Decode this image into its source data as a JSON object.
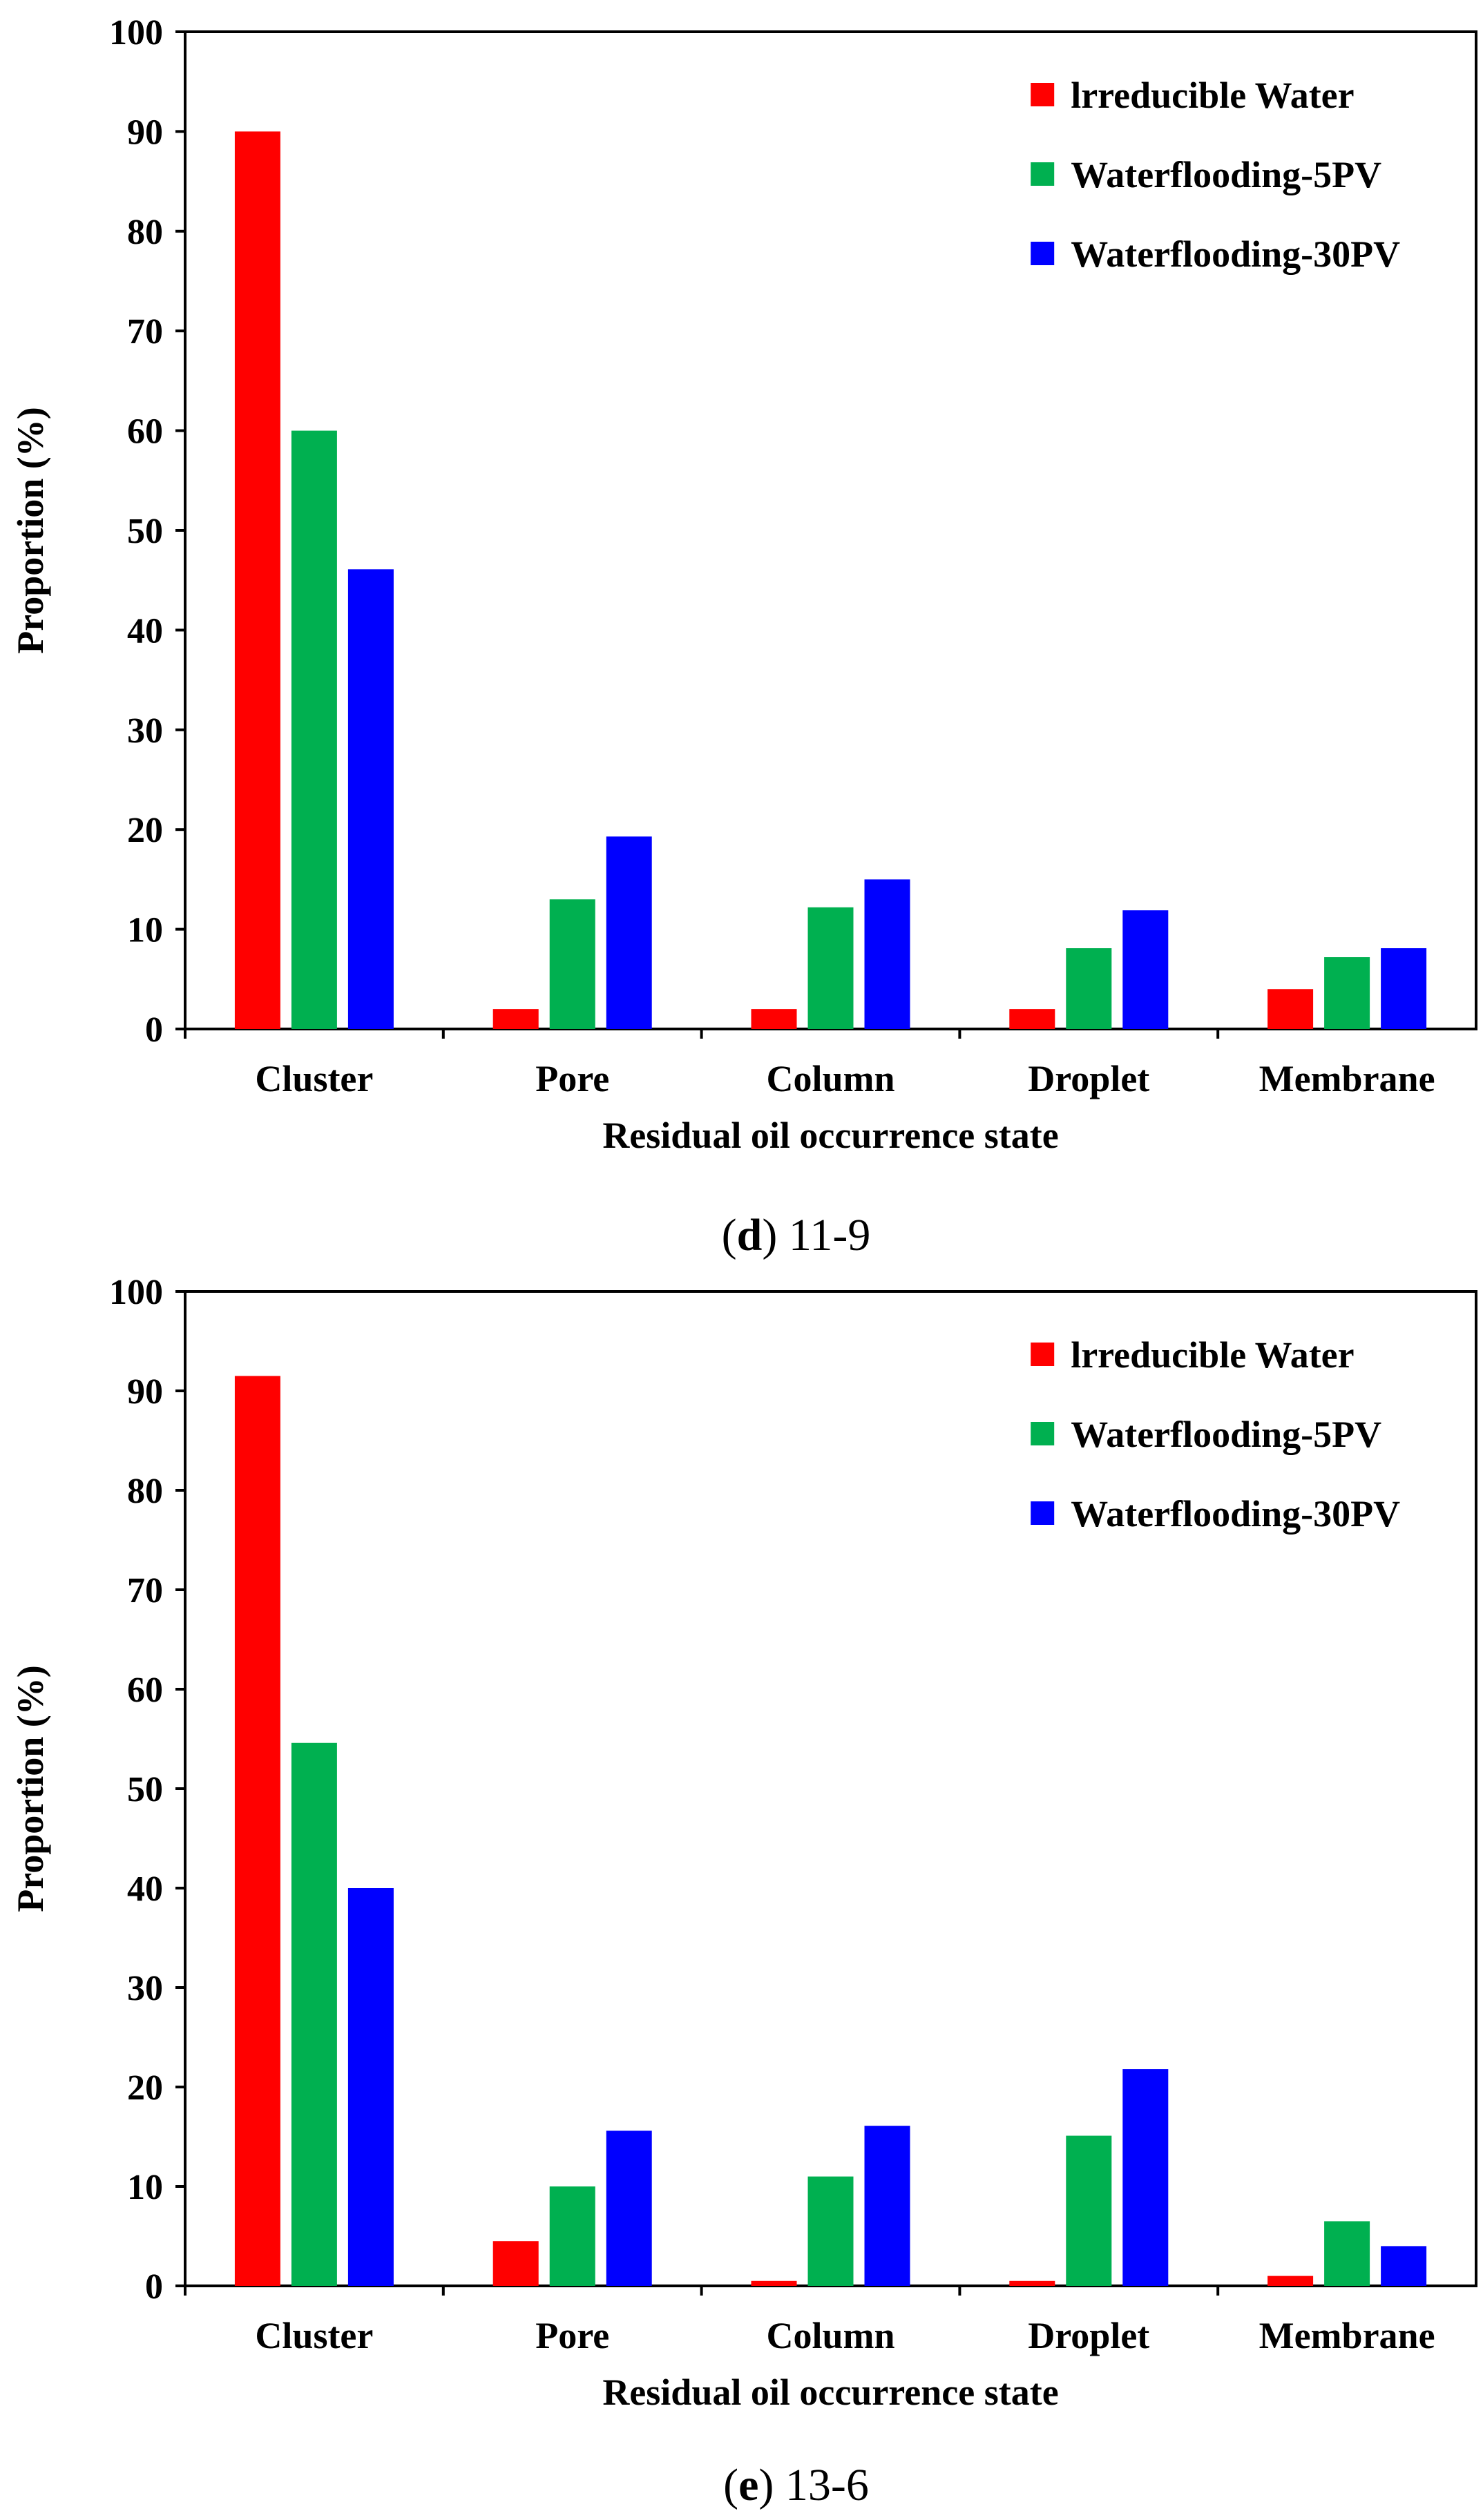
{
  "figure": {
    "captions": [
      {
        "letter": "d",
        "text": " 11-9"
      },
      {
        "letter": "e",
        "text": " 13-6"
      }
    ]
  },
  "chart_data": [
    {
      "type": "bar",
      "categories": [
        "Cluster",
        "Pore",
        "Column",
        "Droplet",
        "Membrane"
      ],
      "xlabel": "Residual oil occurrence state",
      "ylabel": "Proportion (%)",
      "ylim": [
        0,
        100
      ],
      "yticks": [
        0,
        10,
        20,
        30,
        40,
        50,
        60,
        70,
        80,
        90,
        100
      ],
      "legend_position": "top-right",
      "grid": false,
      "series": [
        {
          "name": "lrreducible Water",
          "color": "#ff0000",
          "values": [
            90,
            2,
            2,
            2,
            4
          ]
        },
        {
          "name": "Waterflooding-5PV",
          "color": "#00b050",
          "values": [
            60,
            13,
            12.2,
            8.1,
            7.2
          ]
        },
        {
          "name": "Waterflooding-30PV",
          "color": "#0000ff",
          "values": [
            46.1,
            19.3,
            15,
            11.9,
            8.1
          ]
        }
      ]
    },
    {
      "type": "bar",
      "categories": [
        "Cluster",
        "Pore",
        "Column",
        "Droplet",
        "Membrane"
      ],
      "xlabel": "Residual oil occurrence state",
      "ylabel": "Proportion (%)",
      "ylim": [
        0,
        100
      ],
      "yticks": [
        0,
        10,
        20,
        30,
        40,
        50,
        60,
        70,
        80,
        90,
        100
      ],
      "legend_position": "top-right",
      "grid": false,
      "series": [
        {
          "name": "lrreducible Water",
          "color": "#ff0000",
          "values": [
            91.5,
            4.5,
            0.5,
            0.5,
            1
          ]
        },
        {
          "name": "Waterflooding-5PV",
          "color": "#00b050",
          "values": [
            54.6,
            10,
            11,
            15.1,
            6.5
          ]
        },
        {
          "name": "Waterflooding-30PV",
          "color": "#0000ff",
          "values": [
            40,
            15.6,
            16.1,
            21.8,
            4
          ]
        }
      ]
    }
  ]
}
